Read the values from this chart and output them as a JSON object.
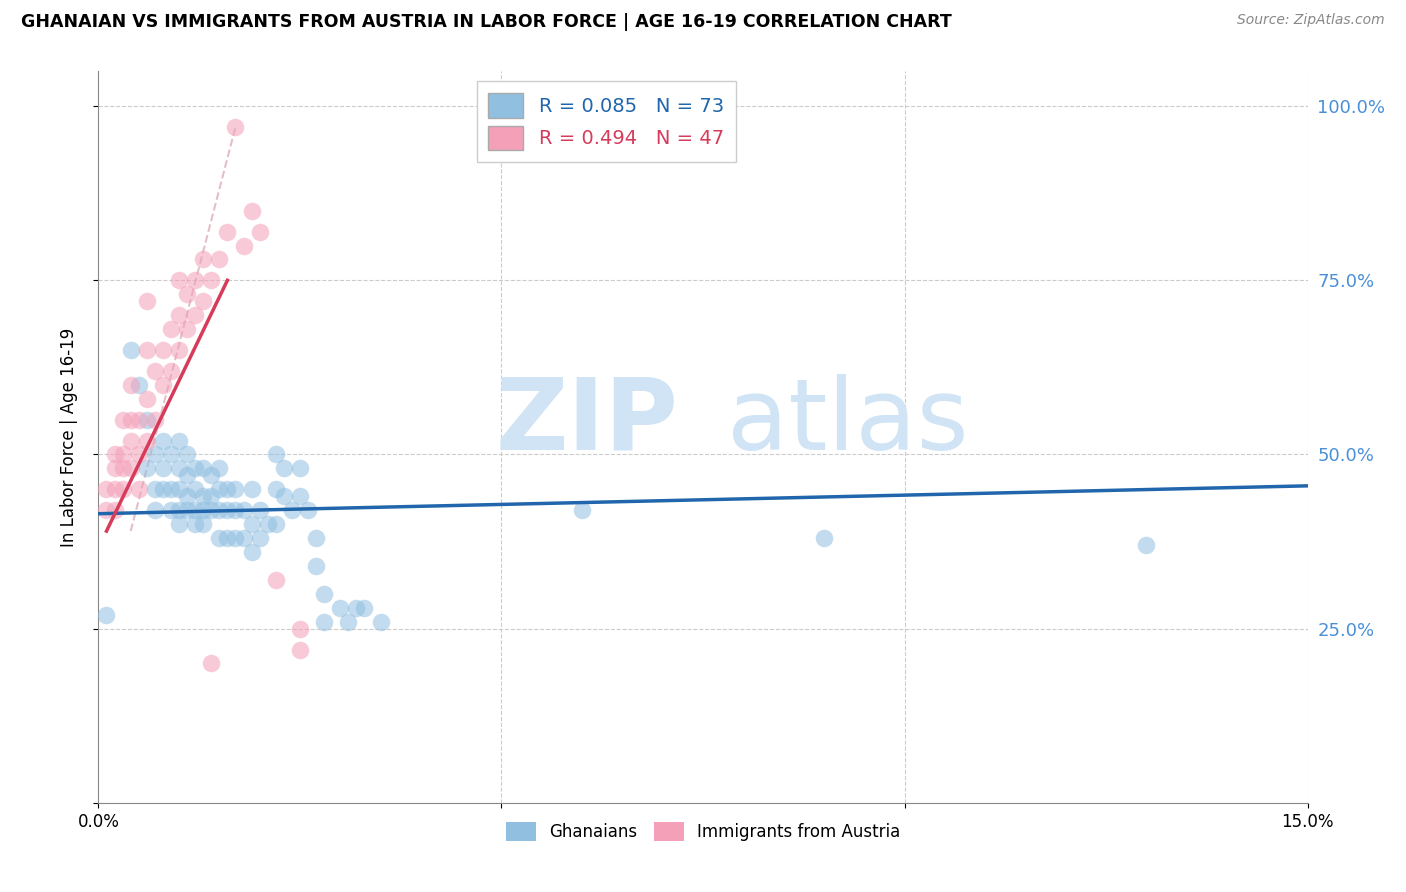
{
  "title": "GHANAIAN VS IMMIGRANTS FROM AUSTRIA IN LABOR FORCE | AGE 16-19 CORRELATION CHART",
  "source": "Source: ZipAtlas.com",
  "ylabel": "In Labor Force | Age 16-19",
  "xlim": [
    0,
    0.15
  ],
  "ylim": [
    0.0,
    1.05
  ],
  "blue_color": "#90bfe0",
  "pink_color": "#f4a0b8",
  "blue_line_color": "#2166ac",
  "pink_line_color": "#d63b5a",
  "dashed_line_color": "#e0b8c0",
  "blue_scatter": [
    [
      0.001,
      0.27
    ],
    [
      0.004,
      0.65
    ],
    [
      0.005,
      0.6
    ],
    [
      0.006,
      0.55
    ],
    [
      0.006,
      0.48
    ],
    [
      0.007,
      0.5
    ],
    [
      0.007,
      0.45
    ],
    [
      0.007,
      0.42
    ],
    [
      0.008,
      0.52
    ],
    [
      0.008,
      0.48
    ],
    [
      0.008,
      0.45
    ],
    [
      0.009,
      0.5
    ],
    [
      0.009,
      0.45
    ],
    [
      0.009,
      0.42
    ],
    [
      0.01,
      0.52
    ],
    [
      0.01,
      0.48
    ],
    [
      0.01,
      0.45
    ],
    [
      0.01,
      0.42
    ],
    [
      0.01,
      0.4
    ],
    [
      0.011,
      0.5
    ],
    [
      0.011,
      0.47
    ],
    [
      0.011,
      0.44
    ],
    [
      0.011,
      0.42
    ],
    [
      0.012,
      0.48
    ],
    [
      0.012,
      0.45
    ],
    [
      0.012,
      0.42
    ],
    [
      0.012,
      0.4
    ],
    [
      0.013,
      0.48
    ],
    [
      0.013,
      0.44
    ],
    [
      0.013,
      0.42
    ],
    [
      0.013,
      0.4
    ],
    [
      0.014,
      0.47
    ],
    [
      0.014,
      0.44
    ],
    [
      0.014,
      0.42
    ],
    [
      0.015,
      0.48
    ],
    [
      0.015,
      0.45
    ],
    [
      0.015,
      0.42
    ],
    [
      0.015,
      0.38
    ],
    [
      0.016,
      0.45
    ],
    [
      0.016,
      0.42
    ],
    [
      0.016,
      0.38
    ],
    [
      0.017,
      0.45
    ],
    [
      0.017,
      0.42
    ],
    [
      0.017,
      0.38
    ],
    [
      0.018,
      0.42
    ],
    [
      0.018,
      0.38
    ],
    [
      0.019,
      0.45
    ],
    [
      0.019,
      0.4
    ],
    [
      0.019,
      0.36
    ],
    [
      0.02,
      0.42
    ],
    [
      0.02,
      0.38
    ],
    [
      0.021,
      0.4
    ],
    [
      0.022,
      0.5
    ],
    [
      0.022,
      0.45
    ],
    [
      0.022,
      0.4
    ],
    [
      0.023,
      0.48
    ],
    [
      0.023,
      0.44
    ],
    [
      0.024,
      0.42
    ],
    [
      0.025,
      0.48
    ],
    [
      0.025,
      0.44
    ],
    [
      0.026,
      0.42
    ],
    [
      0.027,
      0.38
    ],
    [
      0.027,
      0.34
    ],
    [
      0.028,
      0.3
    ],
    [
      0.028,
      0.26
    ],
    [
      0.03,
      0.28
    ],
    [
      0.031,
      0.26
    ],
    [
      0.032,
      0.28
    ],
    [
      0.033,
      0.28
    ],
    [
      0.035,
      0.26
    ],
    [
      0.06,
      0.42
    ],
    [
      0.09,
      0.38
    ],
    [
      0.13,
      0.37
    ]
  ],
  "pink_scatter": [
    [
      0.001,
      0.42
    ],
    [
      0.001,
      0.45
    ],
    [
      0.002,
      0.42
    ],
    [
      0.002,
      0.45
    ],
    [
      0.002,
      0.48
    ],
    [
      0.002,
      0.5
    ],
    [
      0.003,
      0.45
    ],
    [
      0.003,
      0.48
    ],
    [
      0.003,
      0.5
    ],
    [
      0.003,
      0.55
    ],
    [
      0.004,
      0.48
    ],
    [
      0.004,
      0.52
    ],
    [
      0.004,
      0.55
    ],
    [
      0.004,
      0.6
    ],
    [
      0.005,
      0.45
    ],
    [
      0.005,
      0.5
    ],
    [
      0.005,
      0.55
    ],
    [
      0.006,
      0.52
    ],
    [
      0.006,
      0.58
    ],
    [
      0.006,
      0.65
    ],
    [
      0.006,
      0.72
    ],
    [
      0.007,
      0.55
    ],
    [
      0.007,
      0.62
    ],
    [
      0.008,
      0.6
    ],
    [
      0.008,
      0.65
    ],
    [
      0.009,
      0.62
    ],
    [
      0.009,
      0.68
    ],
    [
      0.01,
      0.65
    ],
    [
      0.01,
      0.7
    ],
    [
      0.01,
      0.75
    ],
    [
      0.011,
      0.68
    ],
    [
      0.011,
      0.73
    ],
    [
      0.012,
      0.7
    ],
    [
      0.012,
      0.75
    ],
    [
      0.013,
      0.72
    ],
    [
      0.013,
      0.78
    ],
    [
      0.014,
      0.2
    ],
    [
      0.014,
      0.75
    ],
    [
      0.015,
      0.78
    ],
    [
      0.016,
      0.82
    ],
    [
      0.017,
      0.97
    ],
    [
      0.018,
      0.8
    ],
    [
      0.019,
      0.85
    ],
    [
      0.02,
      0.82
    ],
    [
      0.022,
      0.32
    ],
    [
      0.025,
      0.25
    ],
    [
      0.025,
      0.22
    ]
  ],
  "blue_line_x": [
    0.0,
    0.15
  ],
  "blue_line_y": [
    0.415,
    0.455
  ],
  "pink_line_x": [
    0.001,
    0.016
  ],
  "pink_line_y": [
    0.39,
    0.75
  ],
  "diag_line_x": [
    0.004,
    0.017
  ],
  "diag_line_y": [
    0.39,
    0.97
  ],
  "legend1_label": "R = 0.085   N = 73",
  "legend2_label": "R = 0.494   N = 47",
  "bottom_legend1": "Ghanaians",
  "bottom_legend2": "Immigrants from Austria"
}
